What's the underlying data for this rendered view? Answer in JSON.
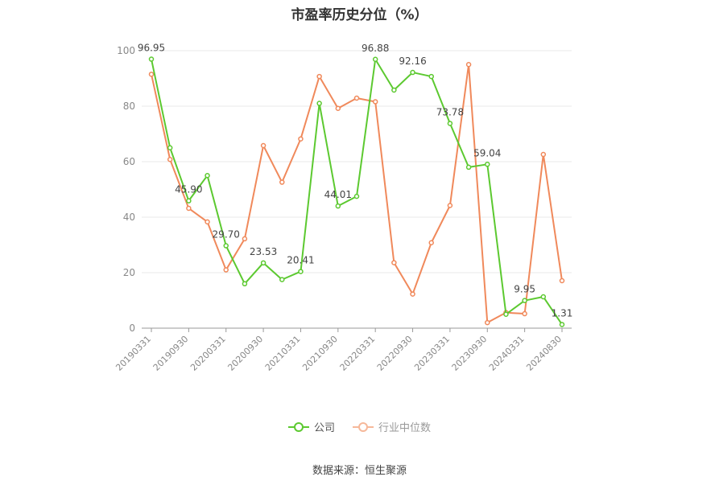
{
  "chart_data": {
    "type": "line",
    "title": "市盈率历史分位（%）",
    "ylim": [
      0,
      100
    ],
    "yticks": [
      0,
      20,
      40,
      60,
      80,
      100
    ],
    "x": [
      "20190331",
      "20190630",
      "20190930",
      "20191231",
      "20200331",
      "20200630",
      "20200930",
      "20201231",
      "20210331",
      "20210630",
      "20210930",
      "20211231",
      "20220331",
      "20220630",
      "20220930",
      "20221231",
      "20230331",
      "20230630",
      "20230930",
      "20231231",
      "20240331",
      "20240630",
      "20240830"
    ],
    "xtick_labels": [
      "20190331",
      "20190930",
      "20200331",
      "20200930",
      "20210331",
      "20210930",
      "20220331",
      "20220930",
      "20230331",
      "20230930",
      "20240331",
      "20240830"
    ],
    "series": [
      {
        "name": "公司",
        "color": "#5cc930",
        "values": [
          96.95,
          65.0,
          45.9,
          55.0,
          29.7,
          16.0,
          23.53,
          17.5,
          20.41,
          81.0,
          44.01,
          47.5,
          96.88,
          85.8,
          92.16,
          90.7,
          73.78,
          58.0,
          59.04,
          5.0,
          9.95,
          11.3,
          1.31
        ],
        "labels": {
          "0": "96.95",
          "2": "45.90",
          "4": "29.70",
          "6": "23.53",
          "8": "20.41",
          "10": "44.01",
          "12": "96.88",
          "14": "92.16",
          "16": "73.78",
          "18": "59.04",
          "20": "9.95",
          "22": "1.31"
        }
      },
      {
        "name": "行业中位数",
        "color": "#f0895b",
        "values": [
          91.5,
          60.8,
          43.2,
          38.3,
          21.0,
          32.2,
          65.8,
          52.6,
          68.2,
          90.7,
          79.2,
          82.9,
          81.6,
          23.6,
          12.3,
          30.8,
          44.2,
          95.0,
          2.0,
          5.6,
          5.2,
          62.6,
          17.1
        ]
      }
    ]
  },
  "legend": {
    "company": "公司",
    "industry": "行业中位数"
  },
  "source": "数据来源：恒生聚源"
}
